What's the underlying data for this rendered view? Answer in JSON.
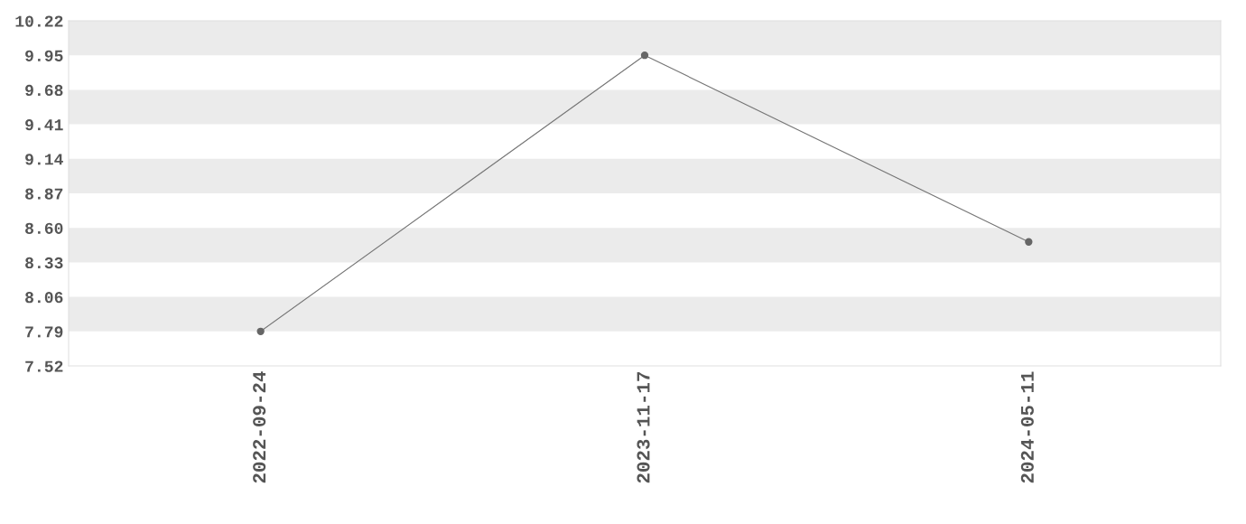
{
  "chart_data": {
    "type": "line",
    "categories": [
      "2022-09-24",
      "2023-11-17",
      "2024-05-11"
    ],
    "series": [
      {
        "color": "#757575",
        "values": [
          7.79,
          9.95,
          8.49
        ]
      }
    ],
    "ylim": [
      7.52,
      10.22
    ],
    "yticks": [
      {
        "value": 7.52,
        "label": "7.52"
      },
      {
        "value": 7.79,
        "label": "7.79"
      },
      {
        "value": 8.06,
        "label": "8.06"
      },
      {
        "value": 8.33,
        "label": "8.33"
      },
      {
        "value": 8.6,
        "label": "8.60"
      },
      {
        "value": 8.87,
        "label": "8.87"
      },
      {
        "value": 9.14,
        "label": "9.14"
      },
      {
        "value": 9.41,
        "label": "9.41"
      },
      {
        "value": 9.68,
        "label": "9.68"
      },
      {
        "value": 9.95,
        "label": "9.95"
      },
      {
        "value": 10.22,
        "label": "10.22"
      }
    ],
    "marker": "circle",
    "line_style": "solid"
  }
}
